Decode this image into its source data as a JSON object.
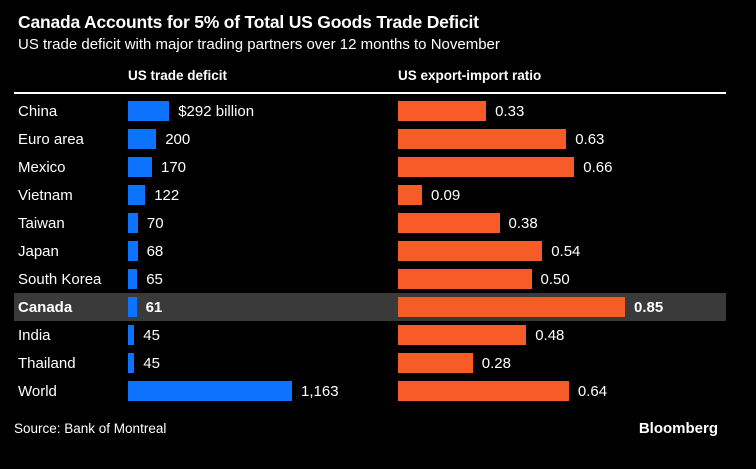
{
  "header": {
    "title": "Canada Accounts for 5% of Total US Goods Trade Deficit",
    "subtitle": "US trade deficit with major trading partners over 12 months to November"
  },
  "columns": {
    "deficit": "US trade deficit",
    "ratio": "US export-import ratio"
  },
  "footer": {
    "source": "Source: Bank of Montreal",
    "brand": "Bloomberg"
  },
  "colors": {
    "background": "#000000",
    "text": "#ffffff",
    "deficit_bar": "#0d73ff",
    "ratio_bar": "#f75c28",
    "highlight_bg": "#3a3a3a",
    "divider": "#ffffff"
  },
  "chart_data": {
    "type": "bar",
    "orientation": "horizontal",
    "title": "Canada Accounts for 5% of Total US Goods Trade Deficit",
    "subtitle": "US trade deficit with major trading partners over 12 months to November",
    "categories": [
      "China",
      "Euro area",
      "Mexico",
      "Vietnam",
      "Taiwan",
      "Japan",
      "South Korea",
      "Canada",
      "India",
      "Thailand",
      "World"
    ],
    "series": [
      {
        "name": "US trade deficit ($ billion)",
        "values": [
          292,
          200,
          170,
          122,
          70,
          68,
          65,
          61,
          45,
          45,
          1163
        ],
        "axis_max": 1163,
        "color": "#0d73ff"
      },
      {
        "name": "US export-import ratio",
        "values": [
          0.33,
          0.63,
          0.66,
          0.09,
          0.38,
          0.54,
          0.5,
          0.85,
          0.48,
          0.28,
          0.64
        ],
        "axis_max": 0.85,
        "color": "#f75c28"
      }
    ],
    "highlight_category": "Canada",
    "legend": "none",
    "grid": false,
    "rows": [
      {
        "label": "China",
        "deficit": 292,
        "deficit_label": "$292 billion",
        "ratio": 0.33,
        "ratio_label": "0.33",
        "highlight": false
      },
      {
        "label": "Euro area",
        "deficit": 200,
        "deficit_label": "200",
        "ratio": 0.63,
        "ratio_label": "0.63",
        "highlight": false
      },
      {
        "label": "Mexico",
        "deficit": 170,
        "deficit_label": "170",
        "ratio": 0.66,
        "ratio_label": "0.66",
        "highlight": false
      },
      {
        "label": "Vietnam",
        "deficit": 122,
        "deficit_label": "122",
        "ratio": 0.09,
        "ratio_label": "0.09",
        "highlight": false
      },
      {
        "label": "Taiwan",
        "deficit": 70,
        "deficit_label": "70",
        "ratio": 0.38,
        "ratio_label": "0.38",
        "highlight": false
      },
      {
        "label": "Japan",
        "deficit": 68,
        "deficit_label": "68",
        "ratio": 0.54,
        "ratio_label": "0.54",
        "highlight": false
      },
      {
        "label": "South Korea",
        "deficit": 65,
        "deficit_label": "65",
        "ratio": 0.5,
        "ratio_label": "0.50",
        "highlight": false
      },
      {
        "label": "Canada",
        "deficit": 61,
        "deficit_label": "61",
        "ratio": 0.85,
        "ratio_label": "0.85",
        "highlight": true
      },
      {
        "label": "India",
        "deficit": 45,
        "deficit_label": "45",
        "ratio": 0.48,
        "ratio_label": "0.48",
        "highlight": false
      },
      {
        "label": "Thailand",
        "deficit": 45,
        "deficit_label": "45",
        "ratio": 0.28,
        "ratio_label": "0.28",
        "highlight": false
      },
      {
        "label": "World",
        "deficit": 1163,
        "deficit_label": "1,163",
        "ratio": 0.64,
        "ratio_label": "0.64",
        "highlight": false
      }
    ]
  }
}
